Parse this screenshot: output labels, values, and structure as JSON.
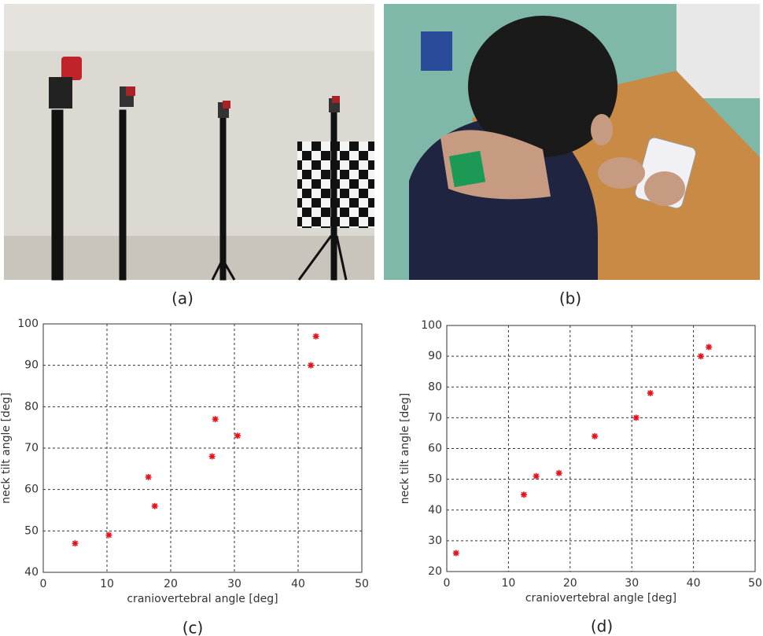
{
  "figure": {
    "captions": [
      "(a)",
      "(b)",
      "(c)",
      "(d)"
    ]
  },
  "chart_data": [
    {
      "type": "scatter",
      "xlabel": "craniovertebral angle [deg]",
      "ylabel": "neck tilt angle [deg]",
      "x": [
        5,
        10.3,
        16.5,
        17.5,
        26.5,
        27,
        30.5,
        42,
        42.8
      ],
      "values": [
        47,
        49,
        63,
        56,
        68,
        77,
        73,
        90,
        97
      ],
      "color": "#e8101a",
      "xlim": [
        0,
        50
      ],
      "xticks": [
        0,
        10,
        20,
        30,
        40,
        50
      ],
      "ylim": [
        40,
        100
      ],
      "yticks": [
        40,
        50,
        60,
        70,
        80,
        90,
        100
      ],
      "grid": true
    },
    {
      "type": "scatter",
      "xlabel": "craniovertebral angle [deg]",
      "ylabel": "neck tilt angle [deg]",
      "x": [
        1.5,
        12.5,
        14.5,
        18.2,
        24,
        30.7,
        33,
        41.2,
        42.5
      ],
      "values": [
        26,
        45,
        51,
        52,
        64,
        70,
        78,
        90,
        93
      ],
      "color": "#e8101a",
      "xlim": [
        0,
        50
      ],
      "xticks": [
        0,
        10,
        20,
        30,
        40,
        50
      ],
      "ylim": [
        20,
        100
      ],
      "yticks": [
        20,
        30,
        40,
        50,
        60,
        70,
        80,
        90,
        100
      ],
      "grid": true
    }
  ]
}
